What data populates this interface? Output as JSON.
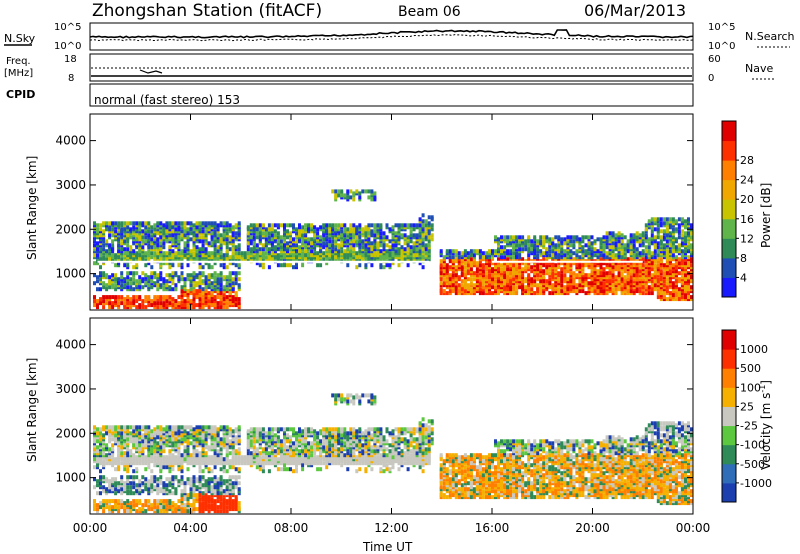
{
  "header": {
    "title": "Zhongshan Station (fitACF)",
    "beam": "Beam 06",
    "date": "06/Mar/2013"
  },
  "top_panels": {
    "nsky_label": "N.Sky",
    "nsearch_label": "N.Search",
    "ytick_top": "10^5",
    "ytick_bottom": "10^0",
    "freq_label": "Freq.",
    "freq_unit": "[MHz]",
    "freq_tick_top": "18",
    "freq_tick_bottom": "8",
    "nave_label": "Nave",
    "nave_tick_top": "60",
    "nave_tick_bottom": "0",
    "cpid_label": "CPID",
    "cpid_text": "normal (fast stereo) 153"
  },
  "chart_data": [
    {
      "type": "heatmap",
      "panel": "power",
      "ylabel": "Slant Range [km]",
      "xlabel": "",
      "yticks": [
        "1000",
        "2000",
        "3000",
        "4000"
      ],
      "ylim": [
        180,
        4600
      ],
      "xlim_hours": [
        0,
        24
      ],
      "colorbar_label": "Power [dB]",
      "colorbar_ticks": [
        "4",
        "8",
        "12",
        "16",
        "20",
        "24",
        "28"
      ],
      "colorbar_colors": [
        "#1a1aff",
        "#1f4fb4",
        "#2e8b57",
        "#5fb44a",
        "#c8c400",
        "#f0a800",
        "#ff8000",
        "#ff3000",
        "#e00000"
      ]
    },
    {
      "type": "heatmap",
      "panel": "velocity",
      "ylabel": "Slant Range [km]",
      "xlabel": "Time UT",
      "yticks": [
        "1000",
        "2000",
        "3000",
        "4000"
      ],
      "xticks": [
        "00:00",
        "04:00",
        "08:00",
        "12:00",
        "16:00",
        "20:00",
        "00:00"
      ],
      "ylim": [
        180,
        4600
      ],
      "xlim_hours": [
        0,
        24
      ],
      "colorbar_label": "Velocity [m s",
      "colorbar_label_sup": "-1",
      "colorbar_label_end": "]",
      "colorbar_ticks": [
        "1000",
        "500",
        "100",
        "25",
        "-25",
        "-100",
        "-500",
        "-1000"
      ],
      "colorbar_colors": [
        "#1c3fb0",
        "#2f6db8",
        "#2e8b57",
        "#5cc840",
        "#c8c8c0",
        "#f5b000",
        "#ff7f00",
        "#ff3000",
        "#e00000"
      ]
    }
  ],
  "colors": {
    "ground_scatter": "#c8c8c0",
    "noise": "#ffffff"
  }
}
